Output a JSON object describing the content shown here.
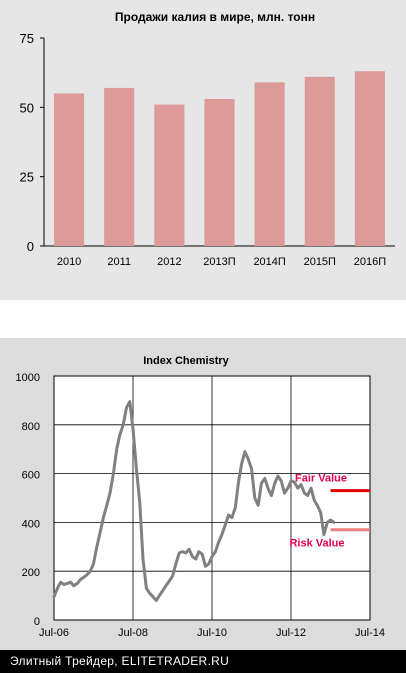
{
  "chart_data": [
    {
      "type": "bar",
      "title": "Продажи калия в мире, млн. тонн",
      "categories": [
        "2010",
        "2011",
        "2012",
        "2013П",
        "2014П",
        "2015П",
        "2016П"
      ],
      "values": [
        55,
        57,
        51,
        53,
        59,
        61,
        63
      ],
      "yticks": [
        "0",
        "25",
        "50",
        "75"
      ],
      "ylim": [
        0,
        75
      ],
      "grid": false,
      "colors": {
        "bar": "#dc9a98",
        "background": "#e6e6e6"
      }
    },
    {
      "type": "line",
      "title": "Index Chemistry",
      "xticks": [
        "Jul-06",
        "Jul-08",
        "Jul-10",
        "Jul-12",
        "Jul-14"
      ],
      "yticks": [
        "0",
        "200",
        "400",
        "600",
        "800",
        "1000"
      ],
      "xlim": [
        "2006-07",
        "2014-07"
      ],
      "ylim": [
        0,
        1000
      ],
      "grid": true,
      "series": [
        {
          "points": [
            [
              "2006-07-01",
              95
            ],
            [
              "2006-08-01",
              130
            ],
            [
              "2006-09-01",
              155
            ],
            [
              "2006-10-01",
              145
            ],
            [
              "2006-11-01",
              150
            ],
            [
              "2006-12-01",
              155
            ],
            [
              "2007-01-01",
              140
            ],
            [
              "2007-02-01",
              150
            ],
            [
              "2007-03-01",
              165
            ],
            [
              "2007-04-01",
              175
            ],
            [
              "2007-05-01",
              185
            ],
            [
              "2007-06-01",
              200
            ],
            [
              "2007-07-01",
              230
            ],
            [
              "2007-08-01",
              300
            ],
            [
              "2007-09-01",
              360
            ],
            [
              "2007-10-01",
              420
            ],
            [
              "2007-11-01",
              470
            ],
            [
              "2007-12-01",
              520
            ],
            [
              "2008-01-01",
              600
            ],
            [
              "2008-02-01",
              700
            ],
            [
              "2008-03-01",
              760
            ],
            [
              "2008-04-01",
              800
            ],
            [
              "2008-05-01",
              870
            ],
            [
              "2008-06-01",
              895
            ],
            [
              "2008-07-01",
              780
            ],
            [
              "2008-08-01",
              620
            ],
            [
              "2008-09-01",
              480
            ],
            [
              "2008-10-01",
              250
            ],
            [
              "2008-11-01",
              130
            ],
            [
              "2008-12-01",
              110
            ],
            [
              "2009-01-01",
              95
            ],
            [
              "2009-02-01",
              80
            ],
            [
              "2009-03-01",
              100
            ],
            [
              "2009-04-01",
              120
            ],
            [
              "2009-05-01",
              140
            ],
            [
              "2009-06-01",
              160
            ],
            [
              "2009-07-01",
              180
            ],
            [
              "2009-08-01",
              230
            ],
            [
              "2009-09-01",
              275
            ],
            [
              "2009-10-01",
              280
            ],
            [
              "2009-11-01",
              275
            ],
            [
              "2009-12-01",
              290
            ],
            [
              "2010-01-01",
              260
            ],
            [
              "2010-02-01",
              250
            ],
            [
              "2010-03-01",
              280
            ],
            [
              "2010-04-01",
              270
            ],
            [
              "2010-05-01",
              220
            ],
            [
              "2010-06-01",
              230
            ],
            [
              "2010-07-01",
              260
            ],
            [
              "2010-08-01",
              280
            ],
            [
              "2010-09-01",
              320
            ],
            [
              "2010-10-01",
              350
            ],
            [
              "2010-11-01",
              390
            ],
            [
              "2010-12-01",
              430
            ],
            [
              "2011-01-01",
              420
            ],
            [
              "2011-02-01",
              460
            ],
            [
              "2011-03-01",
              560
            ],
            [
              "2011-04-01",
              640
            ],
            [
              "2011-05-01",
              690
            ],
            [
              "2011-06-01",
              660
            ],
            [
              "2011-07-01",
              620
            ],
            [
              "2011-08-01",
              500
            ],
            [
              "2011-09-01",
              470
            ],
            [
              "2011-10-01",
              560
            ],
            [
              "2011-11-01",
              580
            ],
            [
              "2011-12-01",
              540
            ],
            [
              "2012-01-01",
              510
            ],
            [
              "2012-02-01",
              560
            ],
            [
              "2012-03-01",
              590
            ],
            [
              "2012-04-01",
              570
            ],
            [
              "2012-05-01",
              520
            ],
            [
              "2012-06-01",
              540
            ],
            [
              "2012-07-01",
              570
            ],
            [
              "2012-08-01",
              565
            ],
            [
              "2012-09-01",
              540
            ],
            [
              "2012-10-01",
              555
            ],
            [
              "2012-11-01",
              520
            ],
            [
              "2012-12-01",
              510
            ],
            [
              "2013-01-01",
              540
            ],
            [
              "2013-02-01",
              490
            ],
            [
              "2013-03-01",
              470
            ],
            [
              "2013-04-01",
              440
            ],
            [
              "2013-05-01",
              350
            ],
            [
              "2013-06-01",
              400
            ],
            [
              "2013-07-01",
              410
            ],
            [
              "2013-08-01",
              400
            ]
          ]
        }
      ],
      "annotations": [
        {
          "text": "Fair Value",
          "y": 530,
          "x_from": "2013-07",
          "x_to": "2014-07",
          "color": "#e0004c",
          "line": "#e00000"
        },
        {
          "text": "Risk Value",
          "y": 370,
          "x_from": "2013-07",
          "x_to": "2014-07",
          "color": "#e0004c",
          "line": "#f08080"
        }
      ],
      "colors": {
        "line": "#808080",
        "background": "#ffffff"
      }
    }
  ],
  "footer": {
    "text": "Элитный Трейдер, ELITETRADER.RU"
  }
}
